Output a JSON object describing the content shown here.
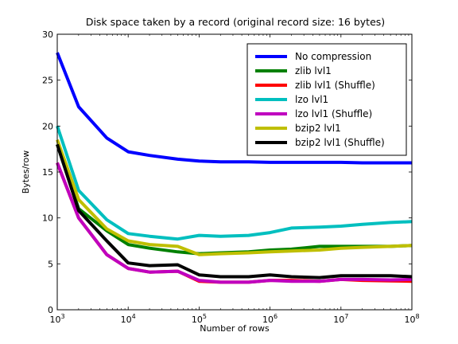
{
  "chart_data": {
    "type": "line",
    "title": "Disk space taken by a record (original record size: 16 bytes)",
    "xlabel": "Number of rows",
    "ylabel": "Bytes/row",
    "xscale": "log",
    "xlim": [
      1000,
      100000000
    ],
    "ylim": [
      0,
      30
    ],
    "xticks": [
      {
        "value": 1000,
        "base": "10",
        "exp": "3"
      },
      {
        "value": 10000,
        "base": "10",
        "exp": "4"
      },
      {
        "value": 100000,
        "base": "10",
        "exp": "5"
      },
      {
        "value": 1000000,
        "base": "10",
        "exp": "6"
      },
      {
        "value": 10000000,
        "base": "10",
        "exp": "7"
      },
      {
        "value": 100000000,
        "base": "10",
        "exp": "8"
      }
    ],
    "yticks": [
      {
        "value": 0,
        "label": "0"
      },
      {
        "value": 5,
        "label": "5"
      },
      {
        "value": 10,
        "label": "10"
      },
      {
        "value": 15,
        "label": "15"
      },
      {
        "value": 20,
        "label": "20"
      },
      {
        "value": 25,
        "label": "25"
      },
      {
        "value": 30,
        "label": "30"
      }
    ],
    "grid": false,
    "legend": "top-right",
    "x": [
      1000,
      2000,
      5000,
      10000,
      20000,
      50000,
      100000,
      200000,
      500000,
      1000000,
      2000000,
      5000000,
      10000000,
      20000000,
      50000000,
      100000000
    ],
    "series": [
      {
        "name": "No compression",
        "color": "#0000ff",
        "values": [
          28.0,
          22.1,
          18.7,
          17.2,
          16.8,
          16.4,
          16.2,
          16.1,
          16.1,
          16.05,
          16.05,
          16.05,
          16.05,
          16.0,
          16.0,
          16.0
        ]
      },
      {
        "name": "zlib lvl1",
        "color": "#008000",
        "values": [
          18.0,
          11.0,
          8.6,
          7.1,
          6.7,
          6.3,
          6.1,
          6.2,
          6.3,
          6.5,
          6.6,
          6.9,
          6.9,
          6.9,
          6.9,
          7.0
        ]
      },
      {
        "name": "zlib lvl1 (Shuffle)",
        "color": "#ff0000",
        "values": [
          16.0,
          10.0,
          6.0,
          4.5,
          4.1,
          4.2,
          3.1,
          3.0,
          3.0,
          3.2,
          3.2,
          3.1,
          3.3,
          3.2,
          3.15,
          3.1
        ]
      },
      {
        "name": "lzo lvl1",
        "color": "#00bfbf",
        "values": [
          20.0,
          13.0,
          9.8,
          8.3,
          8.0,
          7.7,
          8.1,
          8.0,
          8.1,
          8.4,
          8.9,
          9.0,
          9.1,
          9.3,
          9.5,
          9.6
        ]
      },
      {
        "name": "lzo lvl1 (Shuffle)",
        "color": "#bf00bf",
        "values": [
          16.0,
          10.0,
          6.0,
          4.5,
          4.1,
          4.2,
          3.2,
          3.0,
          3.0,
          3.2,
          3.1,
          3.1,
          3.3,
          3.3,
          3.25,
          3.3
        ]
      },
      {
        "name": "bzip2 lvl1",
        "color": "#bfbf00",
        "values": [
          18.5,
          12.0,
          8.8,
          7.5,
          7.1,
          6.9,
          6.0,
          6.1,
          6.2,
          6.3,
          6.4,
          6.5,
          6.7,
          6.8,
          6.9,
          7.0
        ]
      },
      {
        "name": "bzip2 lvl1 (Shuffle)",
        "color": "#000000",
        "values": [
          18.0,
          10.8,
          7.5,
          5.1,
          4.8,
          4.9,
          3.8,
          3.6,
          3.6,
          3.8,
          3.6,
          3.5,
          3.7,
          3.7,
          3.7,
          3.6
        ]
      }
    ]
  }
}
